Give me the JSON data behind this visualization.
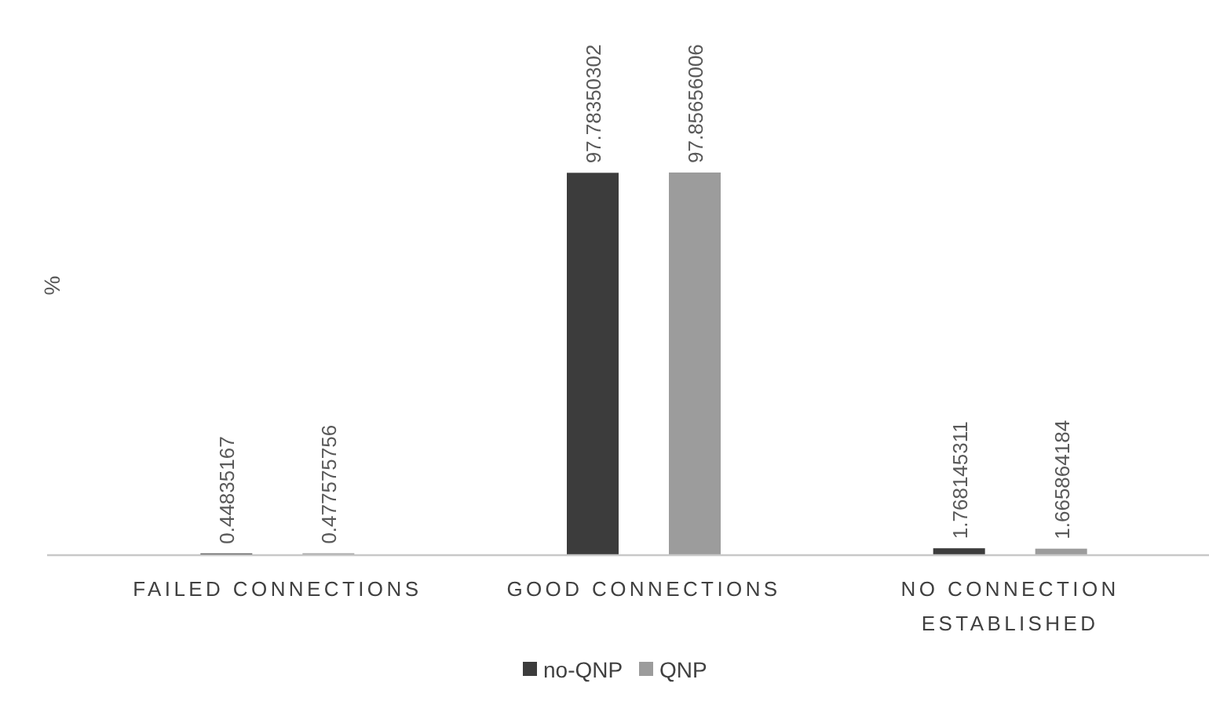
{
  "chart_data": {
    "type": "bar",
    "ylabel": "%",
    "categories": [
      "FAILED CONNECTIONS",
      "GOOD CONNECTIONS",
      "NO CONNECTION ESTABLISHED"
    ],
    "series": [
      {
        "name": "no-QNP",
        "color": "#3c3c3c",
        "values": [
          0.44835167,
          97.78350302,
          1.768145311
        ]
      },
      {
        "name": "QNP",
        "color": "#9c9c9c",
        "values": [
          0.477575756,
          97.85656006,
          1.665864184
        ]
      }
    ],
    "data_labels": true,
    "legend": "bottom"
  }
}
